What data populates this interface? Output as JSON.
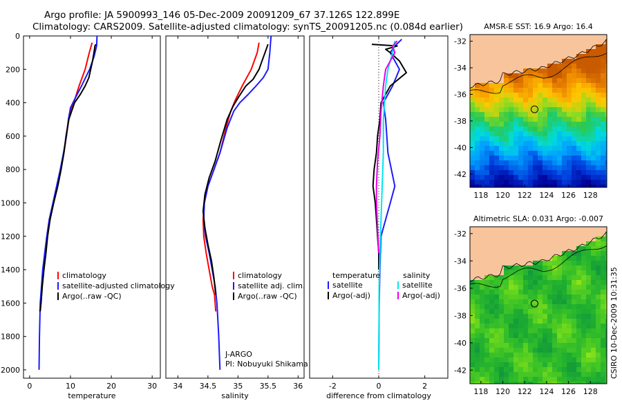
{
  "header": {
    "line1": "Argo profile: JA 5900993_146 05-Dec-2009 20091209_67 37.126S 122.899E",
    "line2": "Climatology: CARS2009. Satellite-adjusted climatology: synTS_20091205.nc (0.084d earlier)"
  },
  "side_label": "CSIRO 10-Dec-2009 10:31:35",
  "colors": {
    "red": "#ff0000",
    "blue": "#1a1aff",
    "black": "#000000",
    "cyan": "#00e5ee",
    "magenta": "#e600e6",
    "land": "#f8c49c"
  },
  "chart_data": [
    {
      "type": "line",
      "id": "temperature",
      "xlabel": "temperature",
      "ylabel": "",
      "xlim": [
        -1.5,
        32
      ],
      "ylim": [
        2050,
        0
      ],
      "y_reversed": true,
      "xticks": [
        0,
        10,
        20,
        30
      ],
      "yticks": [
        0,
        200,
        400,
        600,
        800,
        1000,
        1200,
        1400,
        1600,
        1800,
        2000
      ],
      "series": [
        {
          "name": "climatology",
          "color": "#ff0000",
          "x": [
            15.3,
            14.6,
            13.6,
            12.1,
            10.8,
            10,
            9.6,
            9,
            8.4,
            7.6,
            6.7,
            5.8,
            5,
            4.3,
            3.9,
            3.4,
            3,
            2.7,
            2.5
          ],
          "y": [
            40,
            100,
            200,
            300,
            400,
            450,
            500,
            600,
            700,
            800,
            900,
            1000,
            1100,
            1200,
            1300,
            1400,
            1500,
            1600,
            1650
          ]
        },
        {
          "name": "satellite-adjusted climatology",
          "color": "#1a1aff",
          "x": [
            16.5,
            16.4,
            15.8,
            14.7,
            12.7,
            11,
            10,
            9.5,
            9,
            8.3,
            7.5,
            6.6,
            5.7,
            4.8,
            4.2,
            3.7,
            3.2,
            2.9,
            2.6,
            2.4,
            2.3
          ],
          "y": [
            0,
            60,
            120,
            200,
            300,
            380,
            430,
            500,
            600,
            700,
            800,
            900,
            1000,
            1100,
            1200,
            1300,
            1400,
            1500,
            1600,
            1800,
            2000
          ]
        },
        {
          "name": "Argo(..raw -QC)",
          "color": "#000000",
          "x": [
            16.2,
            16,
            15.8,
            15.4,
            14.5,
            13.6,
            12.4,
            11,
            10.3,
            9.6,
            8.9,
            8.4,
            7.7,
            6.9,
            5.9,
            5,
            4.4,
            4,
            3.5,
            3.1,
            2.8,
            2.6
          ],
          "y": [
            50,
            60,
            90,
            150,
            250,
            300,
            350,
            400,
            450,
            500,
            600,
            700,
            800,
            900,
            1000,
            1100,
            1200,
            1300,
            1400,
            1500,
            1600,
            1650
          ]
        }
      ],
      "annotations": []
    },
    {
      "type": "line",
      "id": "salinity",
      "xlabel": "salinity",
      "ylabel": "",
      "xlim": [
        33.8,
        36.1
      ],
      "ylim": [
        2050,
        0
      ],
      "y_reversed": true,
      "xticks": [
        34,
        34.5,
        35,
        35.5,
        36
      ],
      "yticks": [],
      "series": [
        {
          "name": "climatology",
          "color": "#ff0000",
          "x": [
            35.35,
            35.32,
            35.22,
            35.07,
            34.96,
            34.88,
            34.8,
            34.7,
            34.6,
            34.5,
            34.44,
            34.42,
            34.43,
            34.47,
            34.52,
            34.57,
            34.61,
            34.63
          ],
          "y": [
            40,
            100,
            200,
            300,
            380,
            450,
            550,
            700,
            800,
            900,
            1000,
            1100,
            1200,
            1300,
            1400,
            1500,
            1550,
            1650
          ]
        },
        {
          "name": "satellite adj. clim.",
          "color": "#1a1aff",
          "x": [
            35.55,
            35.53,
            35.5,
            35.42,
            35.3,
            35.17,
            35.03,
            34.93,
            34.82,
            34.7,
            34.6,
            34.5,
            34.44,
            34.43,
            34.46,
            34.52,
            34.57,
            34.62,
            34.65,
            34.68,
            34.7
          ],
          "y": [
            0,
            100,
            200,
            250,
            300,
            350,
            400,
            450,
            550,
            700,
            800,
            900,
            1000,
            1100,
            1200,
            1300,
            1400,
            1500,
            1600,
            1800,
            2000
          ]
        },
        {
          "name": "Argo(..raw -QC)",
          "color": "#000000",
          "x": [
            35.5,
            35.45,
            35.4,
            35.35,
            35.25,
            35.13,
            35.02,
            34.92,
            34.82,
            34.72,
            34.62,
            34.52,
            34.45,
            34.42,
            34.45,
            34.5,
            34.56,
            34.6,
            34.63
          ],
          "y": [
            50,
            100,
            150,
            200,
            260,
            300,
            360,
            420,
            500,
            620,
            750,
            850,
            950,
            1050,
            1150,
            1250,
            1350,
            1450,
            1550
          ]
        }
      ],
      "annotations": [
        "J-ARGO",
        "PI: Nobuyuki Shikama"
      ]
    },
    {
      "type": "line",
      "id": "difference",
      "xlabel": "difference from climatology",
      "ylabel": "",
      "xlim": [
        -3,
        3
      ],
      "ylim": [
        2050,
        0
      ],
      "y_reversed": true,
      "xticks": [
        -2,
        0,
        2
      ],
      "yticks": [],
      "reference_line_x": 0,
      "series": [
        {
          "name": "temperature satellite",
          "color": "#1a1aff",
          "x": [
            1,
            0.7,
            0.5,
            0.9,
            0.6,
            0.2,
            0.3,
            0.35,
            0.4,
            0.7,
            0.5,
            0.3,
            0.1,
            0.05,
            0.02,
            0
          ],
          "y": [
            20,
            60,
            100,
            200,
            300,
            400,
            500,
            600,
            700,
            900,
            1000,
            1100,
            1200,
            1400,
            1600,
            2000
          ]
        },
        {
          "name": "temperature Argo(-adj)",
          "color": "#000000",
          "x": [
            -0.3,
            0.8,
            0.3,
            0.5,
            0.9,
            1.2,
            0.5,
            0.1,
            0.05,
            -0.05,
            -0.1,
            -0.2,
            -0.25,
            -0.15,
            -0.1,
            -0.05,
            0,
            0
          ],
          "y": [
            50,
            60,
            80,
            100,
            150,
            220,
            300,
            400,
            500,
            600,
            700,
            800,
            900,
            1000,
            1100,
            1200,
            1300,
            1400
          ]
        },
        {
          "name": "salinity satellite",
          "color": "#00e5ee",
          "x": [
            0.7,
            0.6,
            0.4,
            0.3,
            0.2,
            0.2,
            0.15,
            0.1,
            0.05,
            0.02,
            0
          ],
          "y": [
            30,
            100,
            200,
            300,
            500,
            700,
            900,
            1100,
            1300,
            1500,
            2000
          ]
        },
        {
          "name": "salinity Argo(-adj)",
          "color": "#e600e6",
          "x": [
            0.8,
            0.6,
            0.7,
            0.5,
            0.3,
            0.2,
            0.1,
            0.05,
            -0.05,
            -0.1,
            -0.1,
            -0.05,
            0
          ],
          "y": [
            30,
            60,
            100,
            150,
            200,
            300,
            450,
            600,
            750,
            900,
            1000,
            1150,
            1300
          ]
        }
      ],
      "legend_left": {
        "title": "temperature",
        "items": [
          "satellite",
          "Argo(-adj)"
        ]
      },
      "legend_right": {
        "title": "salinity",
        "items": [
          "satellite",
          "Argo(-adj)"
        ]
      }
    },
    {
      "type": "heatmap",
      "id": "sst_map",
      "title": "AMSR-E SST: 16.9 Argo: 16.4",
      "xlim": [
        117,
        129.5
      ],
      "ylim": [
        -43,
        -31.5
      ],
      "xticks": [
        118,
        120,
        122,
        124,
        126,
        128
      ],
      "yticks": [
        -32,
        -34,
        -36,
        -38,
        -40,
        -42
      ],
      "profile_location": {
        "lon": 122.899,
        "lat": -37.126
      }
    },
    {
      "type": "heatmap",
      "id": "sla_map",
      "title": "Altimetric SLA: 0.031 Argo: -0.007",
      "xlim": [
        117,
        129.5
      ],
      "ylim": [
        -43,
        -31.5
      ],
      "xticks": [
        118,
        120,
        122,
        124,
        126,
        128
      ],
      "yticks": [
        -32,
        -34,
        -36,
        -38,
        -40,
        -42
      ],
      "profile_location": {
        "lon": 122.899,
        "lat": -37.126
      }
    }
  ],
  "legends": {
    "temperature": [
      "climatology",
      "satellite-adjusted climatology",
      "Argo(..raw -QC)"
    ],
    "salinity": [
      "climatology",
      "satellite adj. clim.",
      "Argo(..raw -QC)"
    ]
  }
}
